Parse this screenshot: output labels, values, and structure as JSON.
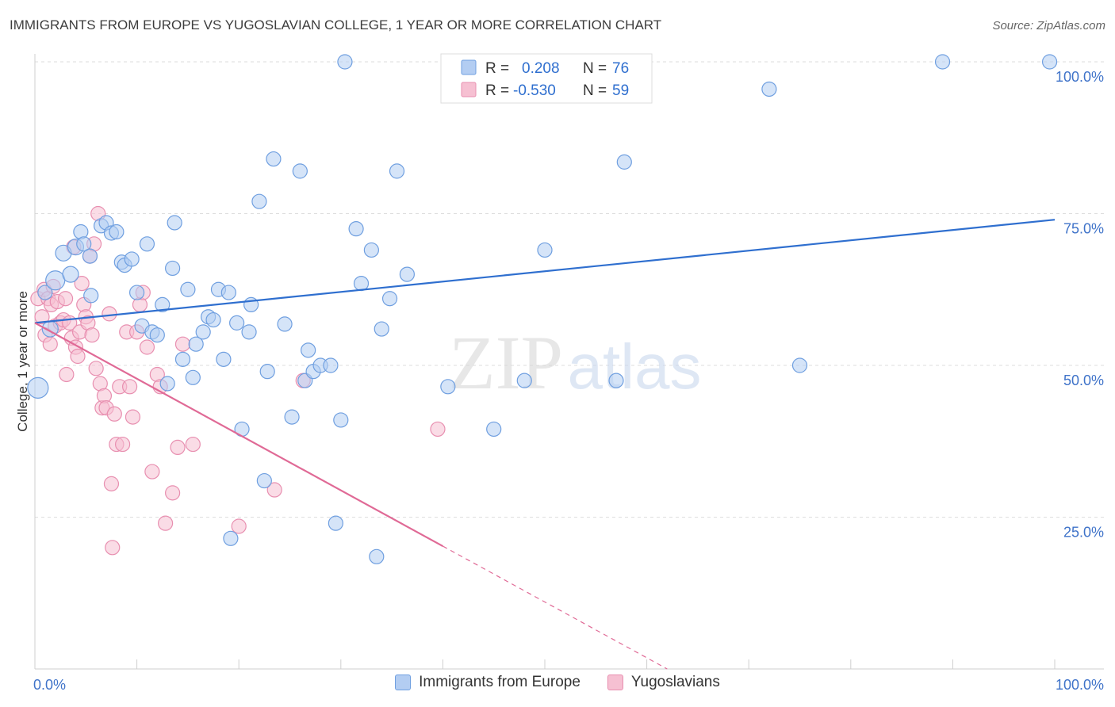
{
  "title": "IMMIGRANTS FROM EUROPE VS YUGOSLAVIAN COLLEGE, 1 YEAR OR MORE CORRELATION CHART",
  "source": "Source: ZipAtlas.com",
  "watermark": {
    "zip": "ZIP",
    "atlas": "atlas"
  },
  "colors": {
    "blue_fill": "#b3cdf2",
    "blue_stroke": "#6f9fe0",
    "blue_line": "#2f6fcf",
    "pink_fill": "#f6c0d2",
    "pink_stroke": "#e88fb0",
    "pink_line": "#e06a96",
    "axis_label": "#3f73c9"
  },
  "legend": [
    {
      "r_label": "R =",
      "r_value": "0.208",
      "n_label": "N =",
      "n_value": "76"
    },
    {
      "r_label": "R =",
      "r_value": "-0.530",
      "n_label": "N =",
      "n_value": "59"
    }
  ],
  "chart_data": {
    "type": "scatter",
    "title": "IMMIGRANTS FROM EUROPE VS YUGOSLAVIAN COLLEGE, 1 YEAR OR MORE CORRELATION CHART",
    "xlabel": "",
    "ylabel": "College, 1 year or more",
    "xlim": [
      0,
      100
    ],
    "ylim": [
      0,
      100
    ],
    "x_tick_labels": [
      "0.0%",
      "100.0%"
    ],
    "y_tick_values": [
      25,
      50,
      75,
      100
    ],
    "y_tick_labels": [
      "25.0%",
      "50.0%",
      "75.0%",
      "100.0%"
    ],
    "grid": "horizontal dashed",
    "legend_position": "top-center",
    "series": [
      {
        "name": "Immigrants from Europe",
        "r": 0.208,
        "n": 76,
        "trend": {
          "x": [
            0,
            100
          ],
          "y": [
            57.0,
            74.0
          ],
          "solid_to": 100
        },
        "points": [
          [
            0.3,
            46.3,
            13
          ],
          [
            1.0,
            62.0,
            9
          ],
          [
            1.5,
            56.0,
            10
          ],
          [
            2.0,
            64.0,
            12
          ],
          [
            2.8,
            68.5,
            10
          ],
          [
            3.5,
            65.0,
            10
          ],
          [
            4.0,
            69.5,
            10
          ],
          [
            4.5,
            72.0,
            9
          ],
          [
            4.8,
            70.0,
            9
          ],
          [
            5.4,
            68.0,
            9
          ],
          [
            5.5,
            61.5,
            9
          ],
          [
            6.5,
            73.0,
            9
          ],
          [
            7.0,
            73.5,
            9
          ],
          [
            7.5,
            71.8,
            9
          ],
          [
            8.0,
            72.0,
            9
          ],
          [
            8.5,
            67.0,
            9
          ],
          [
            8.8,
            66.5,
            9
          ],
          [
            9.5,
            67.5,
            9
          ],
          [
            10.0,
            62.0,
            9
          ],
          [
            10.5,
            56.5,
            9
          ],
          [
            11.0,
            70.0,
            9
          ],
          [
            11.5,
            55.5,
            9
          ],
          [
            12.0,
            55.0,
            9
          ],
          [
            12.5,
            60.0,
            9
          ],
          [
            13.0,
            47.0,
            9
          ],
          [
            13.5,
            66.0,
            9
          ],
          [
            13.7,
            73.5,
            9
          ],
          [
            14.5,
            51.0,
            9
          ],
          [
            15.0,
            62.5,
            9
          ],
          [
            15.5,
            48.0,
            9
          ],
          [
            15.8,
            53.5,
            9
          ],
          [
            16.5,
            55.5,
            9
          ],
          [
            17.0,
            58.0,
            9
          ],
          [
            17.5,
            57.5,
            9
          ],
          [
            18.0,
            62.5,
            9
          ],
          [
            18.5,
            51.0,
            9
          ],
          [
            19.0,
            62.0,
            9
          ],
          [
            19.2,
            21.5,
            9
          ],
          [
            19.8,
            57.0,
            9
          ],
          [
            20.3,
            39.5,
            9
          ],
          [
            21.0,
            55.5,
            9
          ],
          [
            21.2,
            60.0,
            9
          ],
          [
            22.0,
            77.0,
            9
          ],
          [
            22.5,
            31.0,
            9
          ],
          [
            22.8,
            49.0,
            9
          ],
          [
            23.4,
            84.0,
            9
          ],
          [
            24.5,
            56.8,
            9
          ],
          [
            25.2,
            41.5,
            9
          ],
          [
            26.0,
            82.0,
            9
          ],
          [
            26.5,
            47.5,
            9
          ],
          [
            26.8,
            52.5,
            9
          ],
          [
            27.3,
            49.0,
            9
          ],
          [
            28.0,
            50.0,
            9
          ],
          [
            29.0,
            50.0,
            9
          ],
          [
            29.5,
            24.0,
            9
          ],
          [
            30.0,
            41.0,
            9
          ],
          [
            30.4,
            100.0,
            9
          ],
          [
            31.5,
            72.5,
            9
          ],
          [
            32.0,
            63.5,
            9
          ],
          [
            33.0,
            69.0,
            9
          ],
          [
            33.5,
            18.5,
            9
          ],
          [
            34.0,
            56.0,
            9
          ],
          [
            34.8,
            61.0,
            9
          ],
          [
            35.5,
            82.0,
            9
          ],
          [
            36.5,
            65.0,
            9
          ],
          [
            40.5,
            46.5,
            9
          ],
          [
            45.0,
            39.5,
            9
          ],
          [
            48.0,
            47.5,
            9
          ],
          [
            50.0,
            69.0,
            9
          ],
          [
            57.0,
            47.5,
            9
          ],
          [
            57.8,
            83.5,
            9
          ],
          [
            72.0,
            95.5,
            9
          ],
          [
            75.0,
            50.0,
            9
          ],
          [
            89.0,
            100.0,
            9
          ],
          [
            99.5,
            100.0,
            9
          ]
        ]
      },
      {
        "name": "Yugoslavians",
        "r": -0.53,
        "n": 59,
        "trend": {
          "x": [
            0,
            62
          ],
          "y": [
            57.0,
            0.0
          ],
          "solid_to": 40
        },
        "points": [
          [
            0.3,
            61.0,
            9
          ],
          [
            0.7,
            58.0,
            9
          ],
          [
            0.9,
            62.5,
            9
          ],
          [
            1.0,
            55.0,
            9
          ],
          [
            1.3,
            61.0,
            9
          ],
          [
            1.5,
            53.5,
            9
          ],
          [
            1.6,
            60.0,
            9
          ],
          [
            1.8,
            63.0,
            9
          ],
          [
            2.0,
            56.5,
            9
          ],
          [
            2.2,
            60.5,
            9
          ],
          [
            2.5,
            57.0,
            9
          ],
          [
            2.8,
            57.5,
            9
          ],
          [
            3.0,
            61.0,
            9
          ],
          [
            3.1,
            48.5,
            9
          ],
          [
            3.4,
            57.0,
            9
          ],
          [
            3.6,
            54.5,
            9
          ],
          [
            3.8,
            69.5,
            9
          ],
          [
            4.0,
            53.0,
            9
          ],
          [
            4.2,
            51.5,
            9
          ],
          [
            4.4,
            55.5,
            9
          ],
          [
            4.6,
            63.5,
            9
          ],
          [
            4.8,
            60.0,
            9
          ],
          [
            5.0,
            58.0,
            9
          ],
          [
            5.2,
            57.0,
            9
          ],
          [
            5.4,
            68.0,
            9
          ],
          [
            5.6,
            55.0,
            9
          ],
          [
            5.8,
            70.0,
            9
          ],
          [
            6.0,
            49.5,
            9
          ],
          [
            6.2,
            75.0,
            9
          ],
          [
            6.4,
            47.0,
            9
          ],
          [
            6.6,
            43.0,
            9
          ],
          [
            6.8,
            45.0,
            9
          ],
          [
            7.0,
            43.0,
            9
          ],
          [
            7.3,
            58.5,
            9
          ],
          [
            7.5,
            30.5,
            9
          ],
          [
            7.6,
            20.0,
            9
          ],
          [
            7.8,
            42.0,
            9
          ],
          [
            8.0,
            37.0,
            9
          ],
          [
            8.3,
            46.5,
            9
          ],
          [
            8.6,
            37.0,
            9
          ],
          [
            9.0,
            55.5,
            9
          ],
          [
            9.3,
            46.5,
            9
          ],
          [
            9.6,
            41.5,
            9
          ],
          [
            10.0,
            55.5,
            9
          ],
          [
            10.3,
            60.0,
            9
          ],
          [
            10.6,
            62.0,
            9
          ],
          [
            11.0,
            53.0,
            9
          ],
          [
            11.5,
            32.5,
            9
          ],
          [
            12.0,
            48.5,
            9
          ],
          [
            12.3,
            46.5,
            9
          ],
          [
            12.8,
            24.0,
            9
          ],
          [
            13.5,
            29.0,
            9
          ],
          [
            14.0,
            36.5,
            9
          ],
          [
            14.5,
            53.5,
            9
          ],
          [
            15.5,
            37.0,
            9
          ],
          [
            20.0,
            23.5,
            9
          ],
          [
            23.5,
            29.5,
            9
          ],
          [
            26.3,
            47.5,
            9
          ],
          [
            39.5,
            39.5,
            9
          ]
        ]
      }
    ]
  }
}
